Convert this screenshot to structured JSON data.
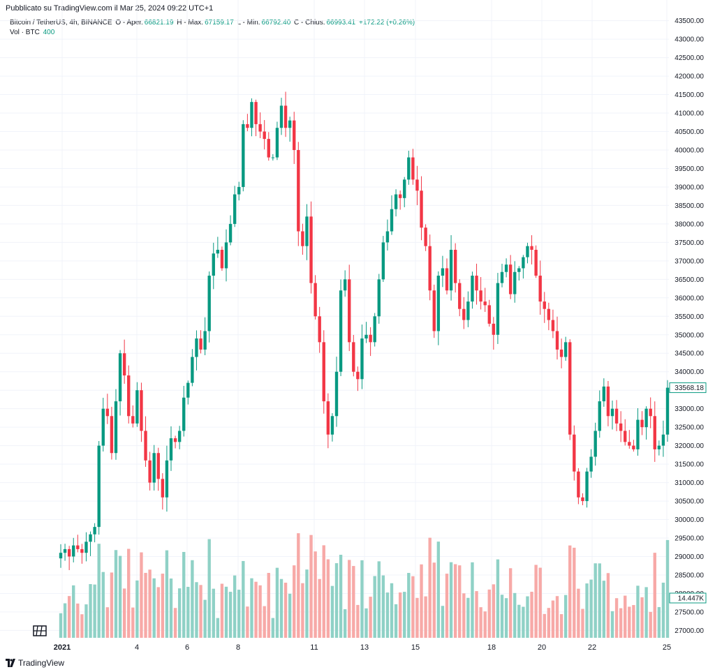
{
  "header": {
    "published": "Pubblicato su TradingView.com il Mar 25, 2024 09:22 UTC+1"
  },
  "legend": {
    "symbol": "Bitcoin / TetherUS, 4h, BINANCE",
    "open_label": "O - Aper.",
    "open_value": "66821.19",
    "high_label": "H - Max.",
    "high_value": "67159.17",
    "low_label": "L - Min.",
    "low_value": "66792.40",
    "close_label": "C - Chius.",
    "close_value": "66993.41",
    "change": "+172.22 (+0.26%)",
    "vol_label": "Vol · BTC",
    "vol_value": "400"
  },
  "footer": {
    "brand": "TradingView"
  },
  "colors": {
    "up": "#089981",
    "down": "#f23645",
    "up_vol": "#8fd1c6",
    "down_vol": "#f7a9a7",
    "grid": "#f0f3fa"
  },
  "chart_data": {
    "type": "candlestick",
    "ylim": [
      26800,
      43550
    ],
    "y_ticks": [
      "43500.00",
      "43000.00",
      "42500.00",
      "42000.00",
      "41500.00",
      "41000.00",
      "40500.00",
      "40000.00",
      "39500.00",
      "39000.00",
      "38500.00",
      "38000.00",
      "37500.00",
      "37000.00",
      "36500.00",
      "36000.00",
      "35500.00",
      "35000.00",
      "34500.00",
      "34000.00",
      "33500.00",
      "33000.00",
      "32500.00",
      "32000.00",
      "31500.00",
      "31000.00",
      "30500.00",
      "30000.00",
      "29500.00",
      "29000.00",
      "28500.00",
      "28000.00",
      "27500.00",
      "27000.00"
    ],
    "x_ticks": [
      "2021",
      "4",
      "6",
      "8",
      "11",
      "13",
      "15",
      "18",
      "20",
      "22",
      "25"
    ],
    "last_price_label": "33568.18",
    "volume_label": "14.447K",
    "closes": [
      29100,
      29200,
      29000,
      29300,
      29200,
      29100,
      29400,
      29600,
      29800,
      32000,
      33000,
      32800,
      31800,
      33200,
      34500,
      33900,
      32800,
      32600,
      33500,
      32400,
      31600,
      31000,
      31800,
      31100,
      30600,
      31600,
      32200,
      32100,
      32400,
      33300,
      33700,
      34400,
      34900,
      34600,
      35100,
      36600,
      37200,
      37300,
      36800,
      37500,
      38000,
      38800,
      39000,
      40700,
      40600,
      41300,
      40700,
      40500,
      40300,
      39800,
      39800,
      40600,
      41200,
      40600,
      40800,
      40000,
      37800,
      37400,
      38200,
      36400,
      35500,
      34800,
      33200,
      32300,
      32800,
      34000,
      36200,
      36500,
      34800,
      34000,
      33800,
      34900,
      35000,
      34800,
      35500,
      36500,
      37500,
      37800,
      38400,
      38800,
      38700,
      39200,
      39800,
      39200,
      38900,
      37900,
      37400,
      36200,
      35100,
      36600,
      36800,
      36200,
      37300,
      36400,
      35700,
      35400,
      35900,
      36600,
      36200,
      35900,
      35800,
      35300,
      35000,
      36400,
      36700,
      36900,
      36100,
      36700,
      36800,
      37100,
      37400,
      37300,
      36600,
      35900,
      35700,
      35400,
      35100,
      34600,
      34400,
      34800,
      32300,
      31300,
      30600,
      30500,
      31300,
      31700,
      32400,
      33200,
      33600,
      32800,
      33000,
      32600,
      32400,
      32100,
      32000,
      31900,
      32700,
      32500,
      33000,
      32800,
      31900,
      32000,
      32300,
      33568
    ]
  }
}
